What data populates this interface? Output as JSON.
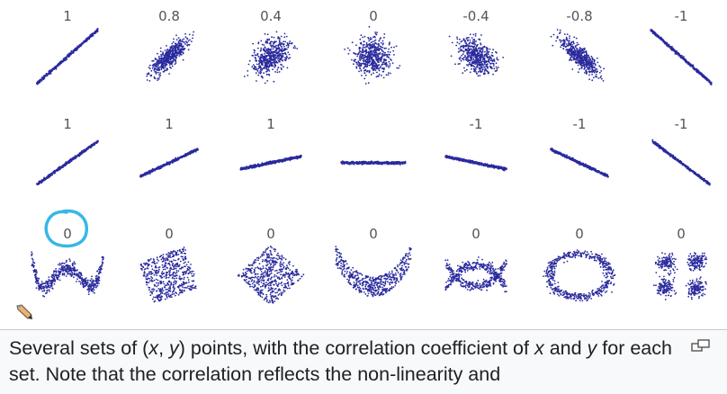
{
  "figure": {
    "rows": [
      {
        "labels": [
          "1",
          "0.8",
          "0.4",
          "0",
          "-0.4",
          "-0.8",
          "-1"
        ],
        "patterns": [
          "line-pos",
          "cloud-0.8",
          "cloud-0.4",
          "cloud-0",
          "cloud--0.4",
          "cloud--0.8",
          "line-neg"
        ]
      },
      {
        "labels": [
          "1",
          "1",
          "1",
          "",
          "-1",
          "-1",
          "-1"
        ],
        "patterns": [
          "slope-steep-pos",
          "slope-mid-pos",
          "slope-flat-pos",
          "slope-zero",
          "slope-flat-neg",
          "slope-mid-neg",
          "slope-steep-neg"
        ]
      },
      {
        "labels": [
          "0",
          "0",
          "0",
          "0",
          "0",
          "0",
          "0"
        ],
        "patterns": [
          "w-shape",
          "rotated-square",
          "diamond",
          "parabola",
          "x-shape",
          "ring",
          "four-clusters"
        ]
      }
    ],
    "point_color": "#2a2a9e",
    "annotation_color": "#37b7e6"
  },
  "caption": {
    "t1": "Several sets of (",
    "t2": "x",
    "t3": ", ",
    "t4": "y",
    "t5": ") points, with the correlation coefficient of ",
    "t6": "x",
    "t7": " and ",
    "t8": "y",
    "t9": " for each set. Note that the correlation reflects the non-linearity and"
  },
  "icons": {
    "enlarge": "enlarge-icon",
    "edit": "pencil-icon"
  }
}
